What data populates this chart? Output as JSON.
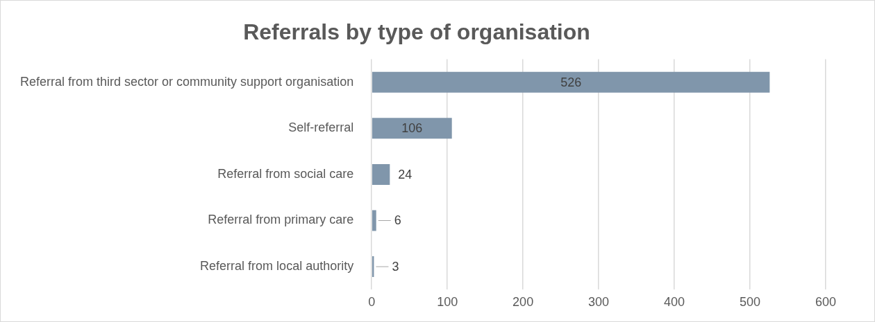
{
  "chart_data": {
    "type": "bar",
    "orientation": "horizontal",
    "title": "Referrals by type of organisation",
    "categories": [
      "Referral from third sector or community support organisation",
      "Self-referral",
      "Referral from social care",
      "Referral from primary care",
      "Referral from local authority"
    ],
    "values": [
      526,
      106,
      24,
      6,
      3
    ],
    "color": "#8096ab",
    "xlim": [
      0,
      600
    ],
    "xticks": [
      0,
      100,
      200,
      300,
      400,
      500,
      600
    ],
    "grid": "x",
    "legend": false,
    "data_labels": true
  }
}
